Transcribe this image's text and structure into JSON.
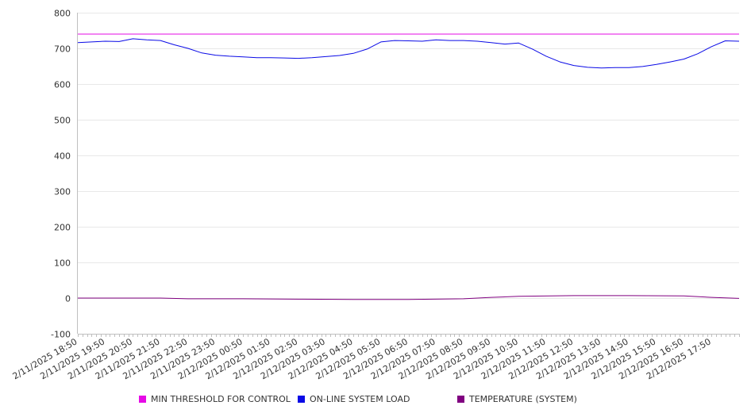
{
  "chart_data": {
    "type": "line",
    "title": "",
    "xlabel": "",
    "ylabel": "",
    "ylim": [
      -100,
      800
    ],
    "yticks": [
      -100,
      0,
      100,
      200,
      300,
      400,
      500,
      600,
      700,
      800
    ],
    "grid": "horizontal",
    "legend_position": "bottom",
    "x_tick_labels": [
      "2/11/2025 18:50",
      "2/11/2025 19:50",
      "2/11/2025 20:50",
      "2/11/2025 21:50",
      "2/11/2025 22:50",
      "2/11/2025 23:50",
      "2/12/2025 00:50",
      "2/12/2025 01:50",
      "2/12/2025 02:50",
      "2/12/2025 03:50",
      "2/12/2025 04:50",
      "2/12/2025 05:50",
      "2/12/2025 06:50",
      "2/12/2025 07:50",
      "2/12/2025 08:50",
      "2/12/2025 09:50",
      "2/12/2025 10:50",
      "2/12/2025 11:50",
      "2/12/2025 12:50",
      "2/12/2025 13:50",
      "2/12/2025 14:50",
      "2/12/2025 15:50",
      "2/12/2025 16:50",
      "2/12/2025 17:50"
    ],
    "x_start": "2/11/2025 18:50",
    "x_end": "2/12/2025 18:50",
    "series": [
      {
        "name": "MIN THRESHOLD FOR CONTROL",
        "color": "#e60ae6",
        "x": [
          "2/11/2025 18:50",
          "2/12/2025 18:50"
        ],
        "values": [
          740,
          740
        ]
      },
      {
        "name": "ON-LINE SYSTEM LOAD",
        "color": "#0a0ae6",
        "x": [
          "2/11/2025 18:50",
          "2/11/2025 19:20",
          "2/11/2025 19:50",
          "2/11/2025 20:20",
          "2/11/2025 20:50",
          "2/11/2025 21:20",
          "2/11/2025 21:50",
          "2/11/2025 22:20",
          "2/11/2025 22:50",
          "2/11/2025 23:20",
          "2/11/2025 23:50",
          "2/12/2025 00:20",
          "2/12/2025 00:50",
          "2/12/2025 01:20",
          "2/12/2025 01:50",
          "2/12/2025 02:20",
          "2/12/2025 02:50",
          "2/12/2025 03:20",
          "2/12/2025 03:50",
          "2/12/2025 04:20",
          "2/12/2025 04:50",
          "2/12/2025 05:20",
          "2/12/2025 05:50",
          "2/12/2025 06:20",
          "2/12/2025 06:50",
          "2/12/2025 07:20",
          "2/12/2025 07:50",
          "2/12/2025 08:20",
          "2/12/2025 08:50",
          "2/12/2025 09:20",
          "2/12/2025 09:50",
          "2/12/2025 10:20",
          "2/12/2025 10:50",
          "2/12/2025 11:20",
          "2/12/2025 11:50",
          "2/12/2025 12:20",
          "2/12/2025 12:50",
          "2/12/2025 13:20",
          "2/12/2025 13:50",
          "2/12/2025 14:20",
          "2/12/2025 14:50",
          "2/12/2025 15:20",
          "2/12/2025 15:50",
          "2/12/2025 16:20",
          "2/12/2025 16:50",
          "2/12/2025 17:20",
          "2/12/2025 17:50",
          "2/12/2025 18:20",
          "2/12/2025 18:50"
        ],
        "values": [
          716,
          718,
          720,
          719,
          727,
          724,
          722,
          710,
          700,
          687,
          681,
          678,
          676,
          674,
          674,
          673,
          672,
          674,
          677,
          680,
          686,
          698,
          718,
          722,
          721,
          720,
          724,
          722,
          722,
          720,
          716,
          712,
          715,
          698,
          678,
          662,
          652,
          647,
          645,
          646,
          646,
          649,
          655,
          662,
          670,
          685,
          705,
          721,
          720
        ]
      },
      {
        "name": "TEMPERATURE (SYSTEM)",
        "color": "#800080",
        "x": [
          "2/11/2025 18:50",
          "2/11/2025 20:50",
          "2/11/2025 21:50",
          "2/11/2025 22:50",
          "2/12/2025 00:50",
          "2/12/2025 02:50",
          "2/12/2025 04:50",
          "2/12/2025 06:50",
          "2/12/2025 08:50",
          "2/12/2025 09:50",
          "2/12/2025 10:50",
          "2/12/2025 12:50",
          "2/12/2025 14:50",
          "2/12/2025 16:50",
          "2/12/2025 17:50",
          "2/12/2025 18:50"
        ],
        "values": [
          0,
          0,
          0,
          -2,
          -2,
          -3,
          -4,
          -4,
          -2,
          2,
          5,
          7,
          7,
          6,
          2,
          -1
        ]
      }
    ]
  }
}
